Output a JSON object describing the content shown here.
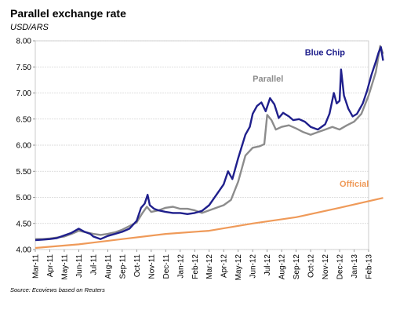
{
  "title": "Parallel exchange rate",
  "subtitle": "USD/ARS",
  "source": "Source: Ecoviews based on Reuters",
  "chart_data": {
    "type": "line",
    "ylim": [
      4.0,
      8.0
    ],
    "ytick_labels": [
      "8.00",
      "7.50",
      "7.00",
      "6.50",
      "6.00",
      "5.50",
      "5.00",
      "4.50",
      "4.00"
    ],
    "ytick_values": [
      8.0,
      7.5,
      7.0,
      6.5,
      6.0,
      5.5,
      5.0,
      4.5,
      4.0
    ],
    "grid": true,
    "categories": [
      "Mar-11",
      "Apr-11",
      "May-11",
      "Jun-11",
      "Jul-11",
      "Aug-11",
      "Sep-11",
      "Oct-11",
      "Nov-11",
      "Dec-11",
      "Jan-12",
      "Feb-12",
      "Mar-12",
      "Apr-12",
      "May-12",
      "Jun-12",
      "Jul-12",
      "Aug-12",
      "Sep-12",
      "Oct-12",
      "Nov-12",
      "Dec-12",
      "Jan-13",
      "Feb-13"
    ],
    "series": [
      {
        "name": "Blue Chip",
        "color": "#1f1f8c",
        "points": [
          [
            0,
            4.18
          ],
          [
            0.5,
            4.19
          ],
          [
            1,
            4.2
          ],
          [
            1.5,
            4.22
          ],
          [
            2,
            4.27
          ],
          [
            2.5,
            4.32
          ],
          [
            3,
            4.4
          ],
          [
            3.4,
            4.34
          ],
          [
            3.8,
            4.3
          ],
          [
            4,
            4.25
          ],
          [
            4.5,
            4.2
          ],
          [
            5,
            4.26
          ],
          [
            5.5,
            4.3
          ],
          [
            6,
            4.34
          ],
          [
            6.5,
            4.4
          ],
          [
            7,
            4.55
          ],
          [
            7.3,
            4.8
          ],
          [
            7.55,
            4.88
          ],
          [
            7.75,
            5.05
          ],
          [
            7.9,
            4.85
          ],
          [
            8.2,
            4.78
          ],
          [
            8.5,
            4.75
          ],
          [
            9,
            4.72
          ],
          [
            9.5,
            4.7
          ],
          [
            10,
            4.7
          ],
          [
            10.5,
            4.68
          ],
          [
            11,
            4.7
          ],
          [
            11.5,
            4.74
          ],
          [
            12,
            4.85
          ],
          [
            12.5,
            5.05
          ],
          [
            13,
            5.25
          ],
          [
            13.3,
            5.5
          ],
          [
            13.6,
            5.35
          ],
          [
            14,
            5.75
          ],
          [
            14.5,
            6.2
          ],
          [
            14.8,
            6.35
          ],
          [
            15,
            6.6
          ],
          [
            15.3,
            6.75
          ],
          [
            15.6,
            6.82
          ],
          [
            15.9,
            6.65
          ],
          [
            16.2,
            6.9
          ],
          [
            16.5,
            6.78
          ],
          [
            16.8,
            6.52
          ],
          [
            17.1,
            6.62
          ],
          [
            17.5,
            6.55
          ],
          [
            17.8,
            6.48
          ],
          [
            18.2,
            6.5
          ],
          [
            18.6,
            6.45
          ],
          [
            19,
            6.35
          ],
          [
            19.5,
            6.3
          ],
          [
            20,
            6.4
          ],
          [
            20.3,
            6.6
          ],
          [
            20.6,
            7.0
          ],
          [
            20.8,
            6.8
          ],
          [
            21.0,
            6.85
          ],
          [
            21.1,
            7.45
          ],
          [
            21.3,
            6.95
          ],
          [
            21.6,
            6.7
          ],
          [
            21.9,
            6.55
          ],
          [
            22.2,
            6.6
          ],
          [
            22.6,
            6.8
          ],
          [
            22.9,
            7.05
          ],
          [
            23.2,
            7.35
          ],
          [
            23.5,
            7.6
          ],
          [
            23.7,
            7.78
          ],
          [
            23.85,
            7.88
          ],
          [
            24,
            7.62
          ]
        ]
      },
      {
        "name": "Parallel",
        "color": "#8c8c8c",
        "points": [
          [
            0,
            4.2
          ],
          [
            0.5,
            4.2
          ],
          [
            1,
            4.21
          ],
          [
            1.5,
            4.23
          ],
          [
            2,
            4.25
          ],
          [
            2.5,
            4.3
          ],
          [
            3,
            4.36
          ],
          [
            3.5,
            4.33
          ],
          [
            4,
            4.3
          ],
          [
            4.5,
            4.28
          ],
          [
            5,
            4.3
          ],
          [
            5.5,
            4.33
          ],
          [
            6,
            4.38
          ],
          [
            6.5,
            4.45
          ],
          [
            7,
            4.52
          ],
          [
            7.4,
            4.7
          ],
          [
            7.7,
            4.82
          ],
          [
            8,
            4.72
          ],
          [
            8.5,
            4.75
          ],
          [
            9,
            4.8
          ],
          [
            9.5,
            4.82
          ],
          [
            10,
            4.78
          ],
          [
            10.5,
            4.78
          ],
          [
            11,
            4.75
          ],
          [
            11.5,
            4.7
          ],
          [
            12,
            4.75
          ],
          [
            12.5,
            4.8
          ],
          [
            13,
            4.85
          ],
          [
            13.5,
            4.95
          ],
          [
            14,
            5.3
          ],
          [
            14.5,
            5.8
          ],
          [
            15,
            5.95
          ],
          [
            15.5,
            5.98
          ],
          [
            15.8,
            6.02
          ],
          [
            16,
            6.58
          ],
          [
            16.3,
            6.48
          ],
          [
            16.6,
            6.3
          ],
          [
            17,
            6.35
          ],
          [
            17.5,
            6.38
          ],
          [
            18,
            6.32
          ],
          [
            18.5,
            6.25
          ],
          [
            19,
            6.2
          ],
          [
            19.5,
            6.25
          ],
          [
            20,
            6.3
          ],
          [
            20.5,
            6.35
          ],
          [
            21,
            6.3
          ],
          [
            21.5,
            6.38
          ],
          [
            22,
            6.45
          ],
          [
            22.5,
            6.6
          ],
          [
            23,
            6.95
          ],
          [
            23.5,
            7.4
          ],
          [
            23.8,
            7.9
          ],
          [
            24,
            7.75
          ]
        ]
      },
      {
        "name": "Official",
        "color": "#ef9a59",
        "points": [
          [
            0,
            4.03
          ],
          [
            3,
            4.1
          ],
          [
            6,
            4.2
          ],
          [
            9,
            4.3
          ],
          [
            12,
            4.36
          ],
          [
            15,
            4.5
          ],
          [
            18,
            4.62
          ],
          [
            21,
            4.8
          ],
          [
            24,
            4.99
          ]
        ]
      }
    ]
  }
}
